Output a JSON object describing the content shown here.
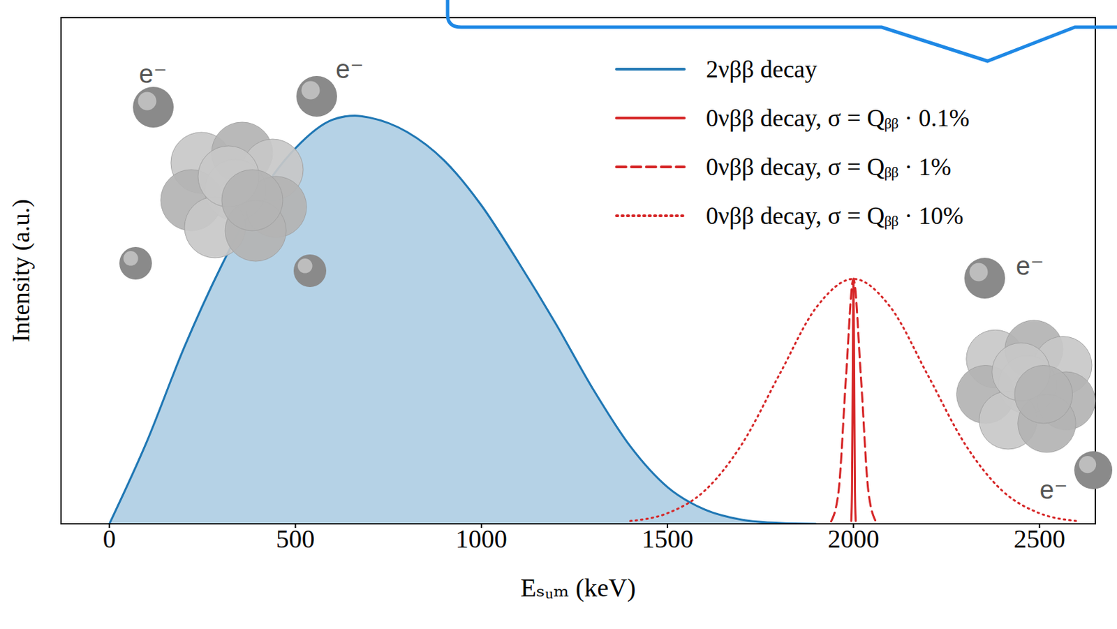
{
  "chart_data": {
    "type": "line",
    "x_label": "Eₛᵤₘ (keV)",
    "y_label": "Intensity (a.u.)",
    "xlim": [
      -130,
      2650
    ],
    "xticks": [
      0,
      500,
      1000,
      1500,
      2000,
      2500
    ],
    "ylim": [
      0,
      1.24
    ],
    "tick_labels": "x",
    "legend": "upper right",
    "annotations": [
      "e⁻",
      "e⁻",
      "e⁻",
      "e⁻"
    ],
    "series": [
      {
        "name": "2νββ decay",
        "type": "area",
        "color": "#1f77b4",
        "line_style": "solid",
        "x": [
          0,
          100,
          200,
          300,
          400,
          500,
          600,
          660,
          700,
          800,
          900,
          1000,
          1100,
          1200,
          1300,
          1400,
          1500,
          1600,
          1700,
          1800,
          1900
        ],
        "values": [
          0,
          0.2,
          0.43,
          0.63,
          0.8,
          0.92,
          0.99,
          1.0,
          0.995,
          0.96,
          0.89,
          0.78,
          0.64,
          0.49,
          0.33,
          0.19,
          0.09,
          0.035,
          0.01,
          0.002,
          0
        ]
      },
      {
        "name": "0νββ decay, σ = Qᵦᵦ · 0.1%",
        "type": "line",
        "color": "#d62728",
        "line_style": "solid",
        "x": [
          1994,
          1996,
          1998,
          2000,
          2002,
          2004,
          2006
        ],
        "values": [
          0.007,
          0.08,
          0.36,
          0.6,
          0.36,
          0.08,
          0.007
        ]
      },
      {
        "name": "0νββ decay, σ = Qᵦᵦ · 1%",
        "type": "line",
        "color": "#d62728",
        "line_style": "dashed",
        "x": [
          1940,
          1960,
          1980,
          2000,
          2020,
          2040,
          2060
        ],
        "values": [
          0.006,
          0.08,
          0.36,
          0.6,
          0.36,
          0.08,
          0.006
        ]
      },
      {
        "name": "0νββ decay, σ = Qᵦᵦ · 10%",
        "type": "line",
        "color": "#d62728",
        "line_style": "dotted",
        "x": [
          1400,
          1500,
          1600,
          1700,
          1800,
          1900,
          2000,
          2100,
          2200,
          2300,
          2400,
          2500,
          2600
        ],
        "values": [
          0.007,
          0.026,
          0.081,
          0.195,
          0.364,
          0.53,
          0.6,
          0.53,
          0.364,
          0.195,
          0.081,
          0.026,
          0.007
        ]
      }
    ]
  }
}
